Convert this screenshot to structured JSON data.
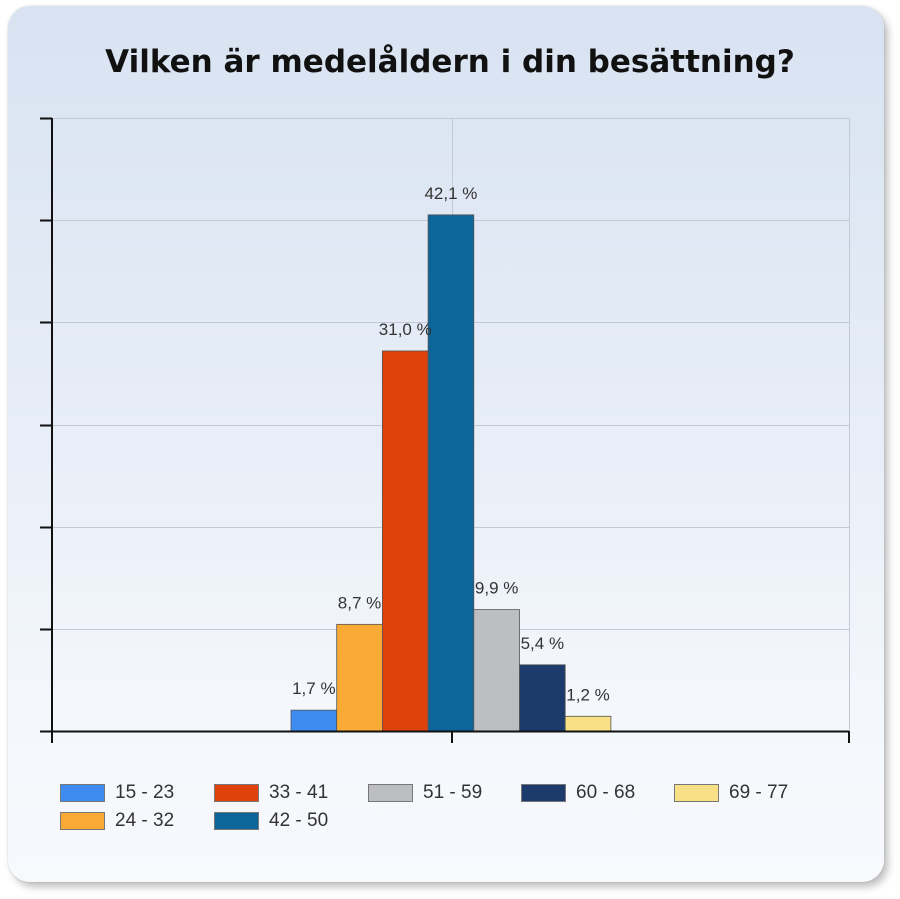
{
  "chart_data": {
    "type": "bar",
    "title": "Vilken är medelåldern i din besättning?",
    "xlabel": "",
    "ylabel": "",
    "ylim": [
      0,
      50
    ],
    "grid": true,
    "legend_position": "bottom",
    "categories": [
      "15 - 23",
      "24 - 32",
      "33 - 41",
      "42 - 50",
      "51 - 59",
      "60 - 68",
      "69 - 77"
    ],
    "values": [
      1.7,
      8.7,
      31.0,
      42.1,
      9.9,
      5.4,
      1.2
    ],
    "labels": [
      "1,7 %",
      "8,7 %",
      "31,0 %",
      "42,1 %",
      "9,9 %",
      "5,4 %",
      "1,2 %"
    ],
    "colors": [
      "#3f8cf0",
      "#f9ab35",
      "#e0420e",
      "#0d6599",
      "#bdbec2",
      "#1c3a6b",
      "#f8e086"
    ],
    "unit": "%"
  },
  "legend": {
    "items": [
      {
        "label": "15 - 23",
        "color": "#3f8cf0"
      },
      {
        "label": "33 - 41",
        "color": "#e0420e"
      },
      {
        "label": "51 - 59",
        "color": "#bdbec2"
      },
      {
        "label": "60 - 68",
        "color": "#1c3a6b"
      },
      {
        "label": "69 - 77",
        "color": "#f8e086"
      },
      {
        "label": "24 - 32",
        "color": "#f9ab35"
      },
      {
        "label": "42 - 50",
        "color": "#0d6599"
      }
    ]
  }
}
